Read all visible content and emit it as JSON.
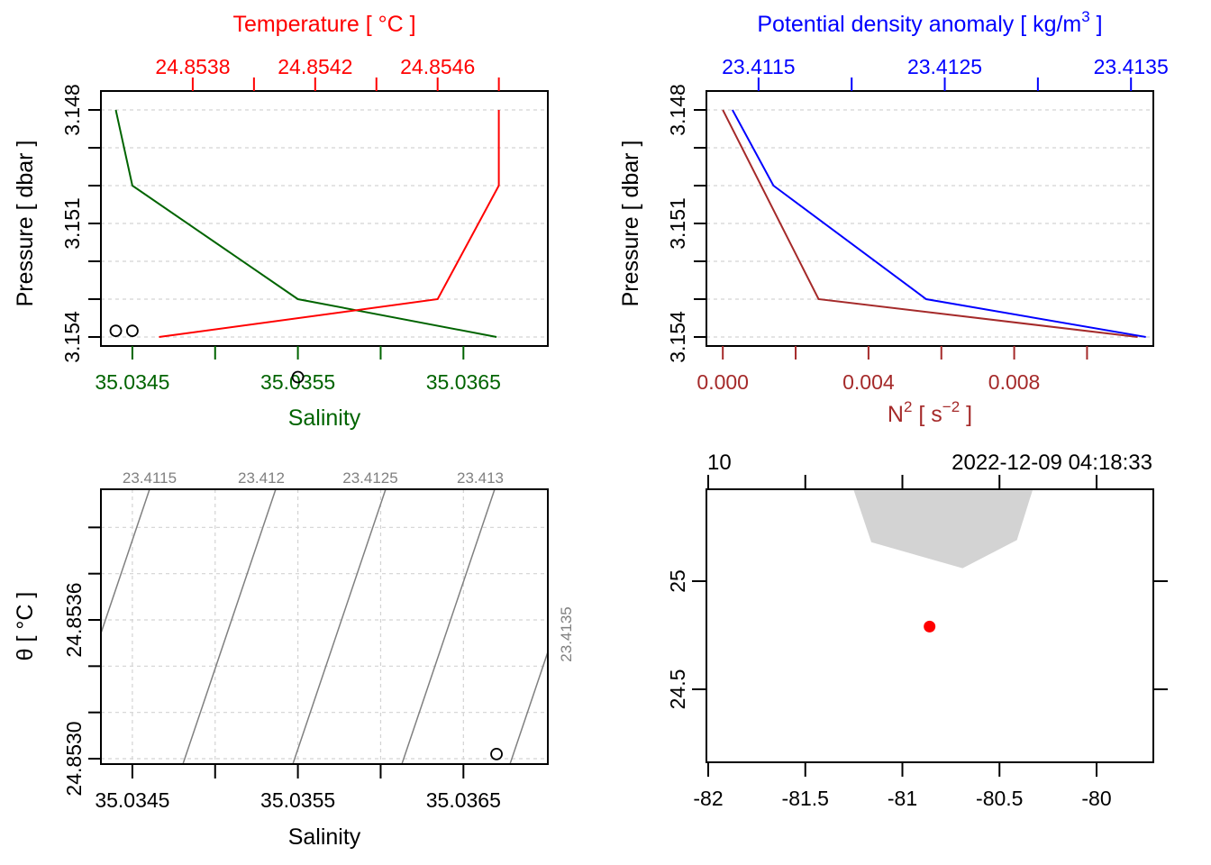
{
  "chart_data": [
    {
      "type": "line",
      "panel": "profile-TS",
      "title": "",
      "ylabel": "Pressure [ dbar ]",
      "ylim": [
        3.154,
        3.148
      ],
      "y_ticks": [
        3.148,
        3.151,
        3.154
      ],
      "y_tick_labels": [
        "3.148",
        "3.151",
        "3.154"
      ],
      "y_grid": [
        3.148,
        3.149,
        3.15,
        3.151,
        3.152,
        3.153,
        3.154
      ],
      "x_bottom": {
        "label": "Salinity",
        "color": "#006400",
        "range": [
          35.03431,
          35.03701
        ],
        "ticks": [
          35.0345,
          35.035,
          35.0355,
          35.036,
          35.0365
        ],
        "tick_labels": [
          "35.0345",
          "",
          "35.0355",
          "",
          "35.0365"
        ]
      },
      "x_top": {
        "label": "Temperature [ °C ]",
        "color": "#ff0000",
        "range": [
          24.8535,
          24.85496
        ],
        "ticks": [
          24.8538,
          24.854,
          24.8542,
          24.8544,
          24.8546,
          24.8548
        ],
        "tick_labels": [
          "24.8538",
          "",
          "24.8542",
          "",
          "24.8546",
          ""
        ]
      },
      "series": [
        {
          "name": "Salinity",
          "axis": "bottom",
          "color": "#006400",
          "pressure": [
            3.148,
            3.15,
            3.153,
            3.154
          ],
          "values": [
            35.0344,
            35.0345,
            35.0355,
            35.0367
          ]
        },
        {
          "name": "Temperature",
          "axis": "top",
          "color": "#ff0000",
          "pressure": [
            3.148,
            3.15,
            3.153,
            3.154
          ],
          "values": [
            24.8548,
            24.8548,
            24.8546,
            24.85369
          ]
        }
      ]
    },
    {
      "type": "line",
      "panel": "profile-density-N2",
      "title": "",
      "ylabel": "Pressure [ dbar ]",
      "ylim": [
        3.154,
        3.148
      ],
      "y_ticks": [
        3.148,
        3.151,
        3.154
      ],
      "y_tick_labels": [
        "3.148",
        "3.151",
        "3.154"
      ],
      "y_grid": [
        3.148,
        3.149,
        3.15,
        3.151,
        3.152,
        3.153,
        3.154
      ],
      "x_bottom": {
        "label": "N² [ s⁻² ]",
        "label_main": "N",
        "label_sup": "2",
        "label_mid": " [ s",
        "label_sup2": "−2",
        "label_end": " ]",
        "color": "#a52a2a",
        "range": [
          -0.00045,
          0.01182
        ],
        "ticks": [
          0.0,
          0.002,
          0.004,
          0.006,
          0.008,
          0.01
        ],
        "tick_labels": [
          "0.000",
          "",
          "0.004",
          "",
          "0.008",
          ""
        ]
      },
      "x_top": {
        "label": "Potential density anomaly [ kg/m³ ]",
        "label_main": "Potential density anomaly [ kg/m",
        "label_sup": "3",
        "label_end": " ]",
        "color": "#0000ff",
        "range": [
          23.41122,
          23.41362
        ],
        "ticks": [
          23.4115,
          23.412,
          23.4125,
          23.413,
          23.4135
        ],
        "tick_labels": [
          "23.4115",
          "",
          "23.4125",
          "",
          "23.4135"
        ]
      },
      "series": [
        {
          "name": "N2",
          "axis": "bottom",
          "color": "#a52a2a",
          "pressure": [
            3.148,
            3.153,
            3.154
          ],
          "values": [
            0.0,
            0.00263,
            0.01139
          ]
        },
        {
          "name": "Potential density anomaly",
          "axis": "top",
          "color": "#0000ff",
          "pressure": [
            3.148,
            3.15,
            3.153,
            3.154
          ],
          "values": [
            23.41136,
            23.41158,
            23.4124,
            23.41358
          ]
        }
      ]
    },
    {
      "type": "scatter",
      "panel": "TS-diagram",
      "title": "",
      "xlabel": "Salinity",
      "ylabel": "θ [ °C ]",
      "xlim": [
        35.03431,
        35.03701
      ],
      "ylim": [
        24.85298,
        24.85497
      ],
      "x_ticks": [
        35.0345,
        35.035,
        35.0355,
        35.036,
        35.0365
      ],
      "x_tick_labels": [
        "35.0345",
        "",
        "35.0355",
        "",
        "35.0365"
      ],
      "y_ticks": [
        24.853,
        24.8532,
        24.8534,
        24.8536,
        24.8538,
        24.854
      ],
      "y_tick_labels": [
        "24.8530",
        "",
        "",
        "24.8536",
        "",
        ""
      ],
      "grid": true,
      "points": [
        {
          "salinity": 35.0344,
          "theta": 24.85485
        },
        {
          "salinity": 35.0345,
          "theta": 24.85485
        },
        {
          "salinity": 35.0355,
          "theta": 24.85465
        },
        {
          "salinity": 35.0367,
          "theta": 24.85302
        }
      ],
      "isopycnals": [
        {
          "label": "23.4115",
          "label_pos": "top"
        },
        {
          "label": "23.412",
          "label_pos": "top"
        },
        {
          "label": "23.4125",
          "label_pos": "top"
        },
        {
          "label": "23.413",
          "label_pos": "top"
        },
        {
          "label": "23.4135",
          "label_pos": "right"
        }
      ],
      "isopycnal_color": "#808080"
    },
    {
      "type": "scatter",
      "panel": "station-map",
      "title": "",
      "top_left_label": "10",
      "top_right_label": "2022-12-09 04:18:33",
      "xlim": [
        -82.01,
        -79.72
      ],
      "ylim": [
        24.17,
        25.42
      ],
      "x_ticks": [
        -82,
        -81.5,
        -81,
        -80.5,
        -80
      ],
      "x_tick_labels": [
        "-82",
        "-81.5",
        "-81",
        "-80.5",
        "-80"
      ],
      "y_ticks": [
        24.5,
        25
      ],
      "y_tick_labels": [
        "24.5",
        "25"
      ],
      "station": {
        "lon": -80.86,
        "lat": 24.79,
        "color": "#ff0000"
      },
      "land_color": "#d3d3d3",
      "land_polygon": [
        [
          -81.25,
          25.42
        ],
        [
          -81.16,
          25.18
        ],
        [
          -80.69,
          25.06
        ],
        [
          -80.41,
          25.19
        ],
        [
          -80.33,
          25.42
        ]
      ]
    }
  ]
}
